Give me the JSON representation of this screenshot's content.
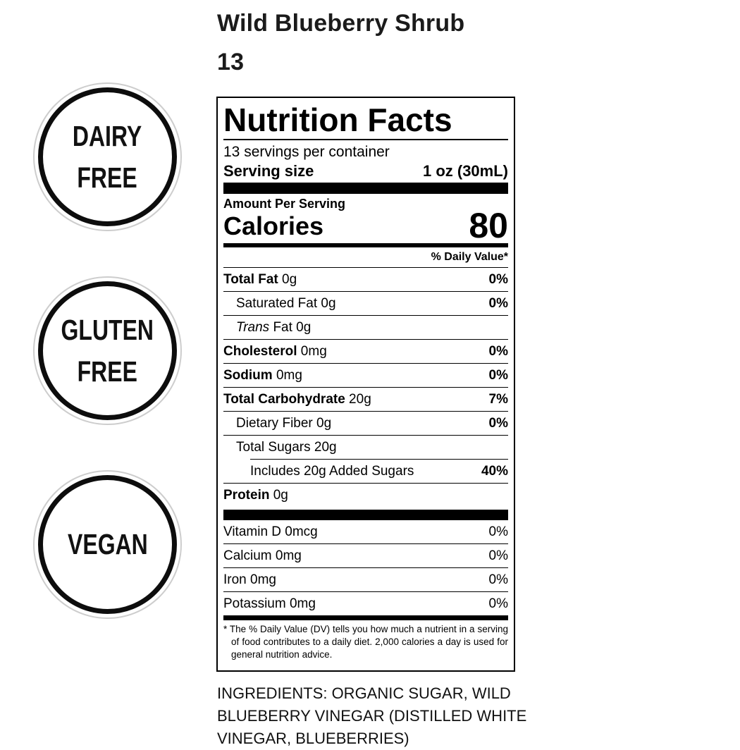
{
  "product": {
    "title_line1": "Wild Blueberry Shrub",
    "title_line2": "13"
  },
  "badges": [
    {
      "id": "dairy-free",
      "line1": "DAIRY",
      "line2": "FREE"
    },
    {
      "id": "gluten-free",
      "line1": "GLUTEN",
      "line2": "FREE"
    },
    {
      "id": "vegan",
      "line1": "VEGAN",
      "line2": ""
    }
  ],
  "label": {
    "heading": "Nutrition Facts",
    "servings_per_container": "13 servings per container",
    "serving_size_label": "Serving size",
    "serving_size_value": "1 oz (30mL)",
    "amount_per_serving": "Amount Per Serving",
    "calories_label": "Calories",
    "calories_value": "80",
    "daily_value_header": "% Daily Value*",
    "nutrients": [
      {
        "name_bold": "Total Fat",
        "name_rest": " 0g",
        "pct": "0%"
      },
      {
        "name_rest": "Saturated Fat 0g",
        "pct": "0%"
      },
      {
        "name_italic": "Trans",
        "name_rest": " Fat 0g",
        "pct": ""
      },
      {
        "name_bold": "Cholesterol",
        "name_rest": " 0mg",
        "pct": "0%"
      },
      {
        "name_bold": "Sodium",
        "name_rest": " 0mg",
        "pct": "0%"
      },
      {
        "name_bold": "Total Carbohydrate",
        "name_rest": " 20g",
        "pct": "7%"
      },
      {
        "name_rest": "Dietary Fiber 0g",
        "pct": "0%"
      },
      {
        "name_rest": "Total Sugars 20g",
        "pct": ""
      },
      {
        "name_rest": "Includes 20g Added Sugars",
        "pct": "40%"
      },
      {
        "name_bold": "Protein",
        "name_rest": " 0g",
        "pct": ""
      }
    ],
    "vitamins": [
      {
        "name": "Vitamin D 0mcg",
        "pct": "0%"
      },
      {
        "name": "Calcium 0mg",
        "pct": "0%"
      },
      {
        "name": "Iron 0mg",
        "pct": "0%"
      },
      {
        "name": "Potassium 0mg",
        "pct": "0%"
      }
    ],
    "footnote": "* The % Daily Value (DV) tells you how much a nutrient in a serving of food contributes to a daily diet. 2,000 calories a day is used for general nutrition advice."
  },
  "ingredients_text": "INGREDIENTS: ORGANIC SUGAR, WILD BLUEBERRY VINEGAR (DISTILLED WHITE VINEGAR, BLUEBERRIES)"
}
